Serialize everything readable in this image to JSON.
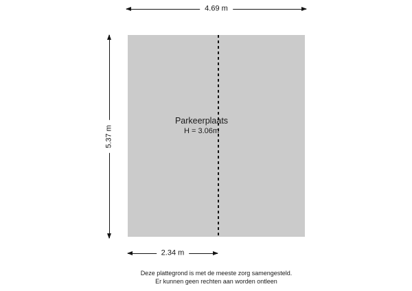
{
  "floorplan": {
    "room": {
      "label": "Parkeerplaats",
      "height_label": "H = 3.06m"
    },
    "dimensions": {
      "top": "4.69 m",
      "left": "5.37 m",
      "bottom": "2.34 m"
    },
    "colors": {
      "room_fill": "#cbcbcb",
      "line": "#141414"
    }
  },
  "footer": {
    "line1": "Deze plattegrond is met de meeste zorg samengesteld.",
    "line2": "Er kunnen geen rechten aan worden ontleen"
  }
}
